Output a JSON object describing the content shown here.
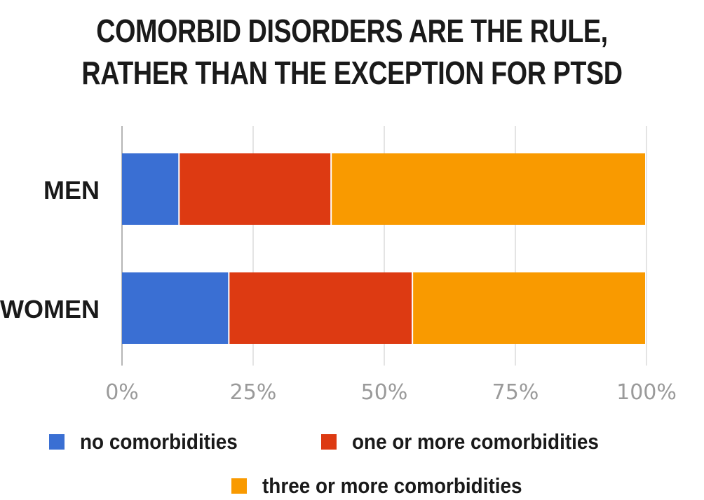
{
  "title_lines": [
    "COMORBID DISORDERS ARE THE RULE,",
    "RATHER THAN THE EXCEPTION FOR PTSD"
  ],
  "colors": {
    "no_comorbidities": "#3a6fd3",
    "one_or_more": "#dd3a12",
    "three_or_more": "#f99a00",
    "grid": "#dcdcdc",
    "axis": "#b5b5b5"
  },
  "chart_data": {
    "type": "bar",
    "orientation": "horizontal",
    "stacked": true,
    "title": "COMORBID DISORDERS ARE THE RULE, RATHER THAN THE EXCEPTION FOR PTSD",
    "categories": [
      "MEN",
      "WOMEN"
    ],
    "series": [
      {
        "name": "no comorbidities",
        "values": [
          11,
          20.5
        ]
      },
      {
        "name": "one or more comorbidities",
        "values": [
          29,
          35
        ]
      },
      {
        "name": "three or more comorbidities",
        "values": [
          60,
          44.5
        ]
      }
    ],
    "xlim": [
      0,
      100
    ],
    "xticks": [
      "0%",
      "25%",
      "50%",
      "75%",
      "100%"
    ],
    "grid": true,
    "legend_position": "bottom"
  }
}
